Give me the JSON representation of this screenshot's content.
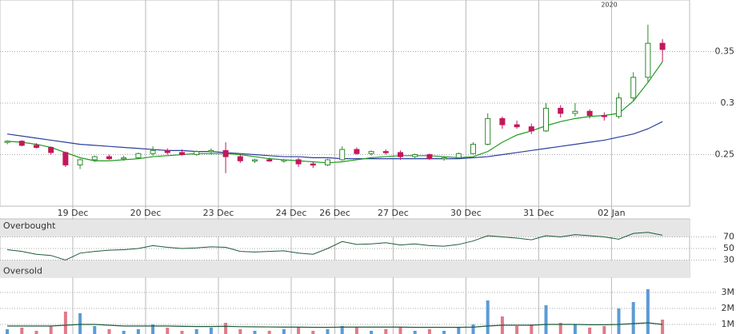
{
  "chart_data": [
    {
      "type": "candlestick",
      "year_label": "2020",
      "categories": [
        null,
        null,
        null,
        null,
        null,
        "19 Dec",
        null,
        null,
        null,
        null,
        "20 Dec",
        null,
        null,
        null,
        null,
        "23 Dec",
        null,
        null,
        null,
        null,
        "24 Dec",
        null,
        null,
        "26 Dec",
        null,
        null,
        null,
        "27 Dec",
        null,
        null,
        null,
        null,
        "30 Dec",
        null,
        null,
        null,
        null,
        "31 Dec",
        null,
        null,
        null,
        null,
        "02 Jan",
        null,
        null,
        null
      ],
      "open": [
        0.262,
        0.263,
        0.259,
        0.257,
        0.252,
        0.24,
        0.245,
        0.248,
        0.246,
        0.247,
        0.251,
        0.254,
        0.252,
        0.25,
        0.253,
        0.254,
        0.248,
        0.244,
        0.245,
        0.244,
        0.245,
        0.241,
        0.24,
        0.245,
        0.255,
        0.251,
        0.253,
        0.252,
        0.248,
        0.25,
        0.246,
        0.247,
        0.251,
        0.26,
        0.285,
        0.279,
        0.277,
        0.273,
        0.295,
        0.29,
        0.292,
        0.288,
        0.287,
        0.305,
        0.325,
        0.358
      ],
      "high": [
        0.264,
        0.264,
        0.261,
        0.258,
        0.253,
        0.246,
        0.249,
        0.25,
        0.249,
        0.252,
        0.258,
        0.256,
        0.255,
        0.254,
        0.256,
        0.262,
        0.25,
        0.246,
        0.247,
        0.246,
        0.247,
        0.243,
        0.246,
        0.258,
        0.257,
        0.254,
        0.255,
        0.254,
        0.251,
        0.251,
        0.248,
        0.252,
        0.262,
        0.29,
        0.287,
        0.283,
        0.28,
        0.3,
        0.298,
        0.3,
        0.294,
        0.291,
        0.31,
        0.33,
        0.376,
        0.362
      ],
      "low": [
        0.26,
        0.258,
        0.256,
        0.25,
        0.238,
        0.236,
        0.243,
        0.245,
        0.244,
        0.246,
        0.249,
        0.25,
        0.249,
        0.249,
        0.25,
        0.232,
        0.242,
        0.242,
        0.243,
        0.242,
        0.238,
        0.237,
        0.239,
        0.244,
        0.25,
        0.249,
        0.25,
        0.245,
        0.246,
        0.245,
        0.244,
        0.246,
        0.25,
        0.259,
        0.275,
        0.275,
        0.27,
        0.272,
        0.286,
        0.287,
        0.285,
        0.283,
        0.285,
        0.302,
        0.32,
        0.34
      ],
      "close": [
        0.263,
        0.259,
        0.257,
        0.252,
        0.24,
        0.245,
        0.248,
        0.246,
        0.247,
        0.251,
        0.254,
        0.252,
        0.25,
        0.253,
        0.254,
        0.248,
        0.244,
        0.245,
        0.244,
        0.245,
        0.241,
        0.24,
        0.245,
        0.255,
        0.251,
        0.253,
        0.252,
        0.248,
        0.25,
        0.246,
        0.247,
        0.251,
        0.26,
        0.285,
        0.279,
        0.277,
        0.273,
        0.295,
        0.29,
        0.292,
        0.288,
        0.287,
        0.305,
        0.325,
        0.358,
        0.352
      ],
      "up_color": "#2e8b2e",
      "down_color": "#c2185b",
      "series": [
        {
          "color": "#2b3f9e",
          "values": [
            0.27,
            0.268,
            0.266,
            0.264,
            0.262,
            0.26,
            0.259,
            0.258,
            0.257,
            0.256,
            0.255,
            0.254,
            0.254,
            0.253,
            0.253,
            0.252,
            0.251,
            0.25,
            0.249,
            0.248,
            0.248,
            0.247,
            0.247,
            0.246,
            0.246,
            0.246,
            0.246,
            0.246,
            0.246,
            0.246,
            0.246,
            0.246,
            0.247,
            0.248,
            0.25,
            0.252,
            0.254,
            0.256,
            0.258,
            0.26,
            0.262,
            0.264,
            0.267,
            0.27,
            0.275,
            0.282
          ]
        },
        {
          "color": "#1e9a1e",
          "values": [
            0.263,
            0.262,
            0.26,
            0.257,
            0.252,
            0.247,
            0.244,
            0.244,
            0.245,
            0.246,
            0.248,
            0.249,
            0.25,
            0.251,
            0.251,
            0.251,
            0.25,
            0.248,
            0.246,
            0.245,
            0.244,
            0.243,
            0.242,
            0.243,
            0.245,
            0.247,
            0.248,
            0.249,
            0.249,
            0.249,
            0.248,
            0.247,
            0.248,
            0.253,
            0.262,
            0.269,
            0.273,
            0.278,
            0.282,
            0.285,
            0.287,
            0.288,
            0.29,
            0.302,
            0.32,
            0.34
          ]
        }
      ],
      "ylim": [
        0.2,
        0.4
      ],
      "yticks": [
        0.25,
        0.3,
        0.35
      ]
    },
    {
      "type": "line",
      "bands": [
        {
          "label": "Overbought",
          "from": 70,
          "to": 100
        },
        {
          "label": "Oversold",
          "from": 0,
          "to": 30
        }
      ],
      "color": "#1f5c3a",
      "values": [
        48,
        45,
        40,
        38,
        30,
        42,
        45,
        47,
        48,
        50,
        55,
        52,
        50,
        51,
        53,
        52,
        45,
        44,
        45,
        46,
        42,
        40,
        50,
        62,
        57,
        58,
        60,
        56,
        58,
        55,
        54,
        57,
        63,
        72,
        70,
        68,
        65,
        72,
        70,
        74,
        72,
        70,
        66,
        76,
        78,
        73
      ],
      "ylim": [
        0,
        100
      ],
      "yticks": [
        30,
        50,
        70
      ]
    },
    {
      "type": "bar",
      "up_color": "#5b9bd5",
      "down_color": "#e07a8a",
      "line_color": "#1f5c3a",
      "values": [
        700000,
        800000,
        600000,
        900000,
        1800000,
        1700000,
        900000,
        700000,
        600000,
        700000,
        1000000,
        800000,
        600000,
        700000,
        800000,
        1100000,
        700000,
        600000,
        600000,
        700000,
        800000,
        600000,
        700000,
        900000,
        800000,
        600000,
        700000,
        800000,
        600000,
        700000,
        600000,
        800000,
        1000000,
        2500000,
        1500000,
        900000,
        1000000,
        2200000,
        1100000,
        1000000,
        800000,
        900000,
        2000000,
        2400000,
        3200000,
        1300000
      ],
      "line_values": [
        900000,
        900000,
        900000,
        900000,
        950000,
        1000000,
        1000000,
        950000,
        900000,
        900000,
        900000,
        900000,
        880000,
        870000,
        870000,
        880000,
        860000,
        850000,
        840000,
        830000,
        830000,
        820000,
        820000,
        830000,
        830000,
        830000,
        830000,
        830000,
        820000,
        820000,
        820000,
        820000,
        830000,
        900000,
        950000,
        950000,
        950000,
        1000000,
        1000000,
        1000000,
        980000,
        980000,
        1000000,
        1050000,
        1100000,
        1000000
      ],
      "ylim": [
        0,
        3900000
      ],
      "yticks": [
        {
          "value": 1000000,
          "label": "1M"
        },
        {
          "value": 2000000,
          "label": "2M"
        },
        {
          "value": 3000000,
          "label": "3M"
        }
      ]
    }
  ]
}
